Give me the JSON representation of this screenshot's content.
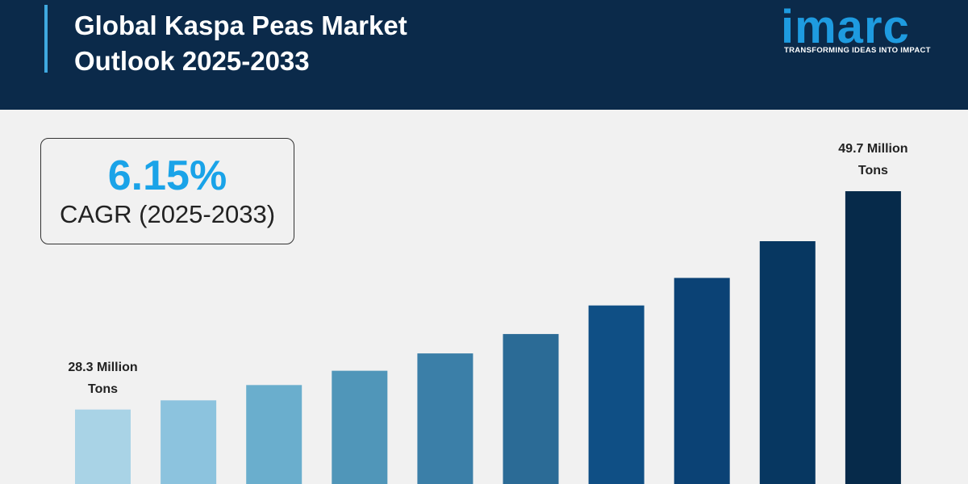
{
  "header": {
    "title": "Global Kaspa Peas Market Outlook 2025-2033"
  },
  "logo": {
    "name": "imarc",
    "tagline": "TRANSFORMING IDEAS INTO IMPACT"
  },
  "callout": {
    "value": "6.15%",
    "label": "CAGR (2025-2033)"
  },
  "chart_data": {
    "type": "bar",
    "categories": [
      null,
      null,
      null,
      null,
      null,
      null,
      null,
      null,
      null,
      null
    ],
    "values": [
      28.3,
      29.2,
      30.7,
      32.1,
      33.8,
      35.7,
      38.5,
      41.2,
      44.8,
      49.7
    ],
    "value_labels": [
      "28.3 Million Tons",
      null,
      null,
      null,
      null,
      null,
      null,
      null,
      null,
      "49.7 Million Tons"
    ],
    "colors": [
      "#a9d3e6",
      "#8cc3de",
      "#6aaecd",
      "#5096b9",
      "#3b7fa8",
      "#2b6b96",
      "#0f4f85",
      "#0b4275",
      "#073761",
      "#062a4a"
    ],
    "ylim": [
      21,
      55
    ]
  }
}
